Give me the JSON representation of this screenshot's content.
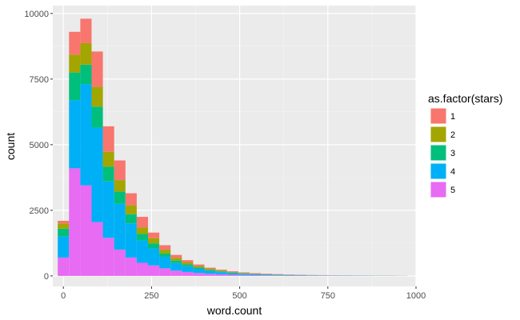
{
  "chart_data": {
    "type": "bar",
    "stacked": true,
    "xlabel": "word.count",
    "ylabel": "count",
    "xlim": [
      -30,
      1000
    ],
    "ylim": [
      -400,
      10300
    ],
    "bin_width": 32,
    "x": [
      0,
      32,
      64,
      96,
      128,
      160,
      192,
      224,
      256,
      288,
      320,
      352,
      384,
      416,
      448,
      480,
      512,
      544,
      576,
      608,
      640,
      672,
      704,
      736,
      768,
      800,
      832,
      864,
      896,
      928,
      960
    ],
    "x_ticks": [
      0,
      250,
      500,
      750,
      1000
    ],
    "y_ticks": [
      0,
      2500,
      5000,
      7500,
      10000
    ],
    "grid": true,
    "legend": {
      "title": "as.factor(stars)",
      "position": "right"
    },
    "series": [
      {
        "name": "5",
        "color": "#E76BF3",
        "values": [
          700,
          4100,
          3450,
          2050,
          1450,
          1000,
          700,
          500,
          400,
          290,
          200,
          150,
          110,
          80,
          60,
          45,
          35,
          28,
          22,
          18,
          14,
          11,
          9,
          8,
          7,
          6,
          5,
          5,
          4,
          4,
          3
        ]
      },
      {
        "name": "4",
        "color": "#00B0F6",
        "values": [
          800,
          2600,
          3850,
          3600,
          2150,
          1750,
          1300,
          850,
          650,
          440,
          290,
          220,
          160,
          110,
          85,
          60,
          45,
          35,
          28,
          22,
          18,
          14,
          11,
          9,
          8,
          7,
          6,
          5,
          4,
          4,
          3
        ]
      },
      {
        "name": "3",
        "color": "#00BF7D",
        "values": [
          300,
          1050,
          750,
          800,
          560,
          460,
          350,
          250,
          190,
          130,
          95,
          70,
          50,
          38,
          28,
          22,
          17,
          13,
          10,
          8,
          7,
          6,
          5,
          4,
          3,
          3,
          2,
          2,
          2,
          2,
          1
        ]
      },
      {
        "name": "2",
        "color": "#A3A500",
        "values": [
          200,
          680,
          820,
          760,
          570,
          440,
          340,
          250,
          200,
          140,
          105,
          75,
          55,
          40,
          30,
          23,
          18,
          14,
          11,
          9,
          7,
          6,
          5,
          4,
          3,
          3,
          2,
          2,
          2,
          2,
          1
        ]
      },
      {
        "name": "1",
        "color": "#F8766D",
        "values": [
          100,
          870,
          930,
          1340,
          970,
          750,
          460,
          400,
          210,
          170,
          110,
          85,
          60,
          45,
          35,
          27,
          20,
          16,
          13,
          10,
          8,
          7,
          6,
          5,
          4,
          3,
          3,
          2,
          2,
          2,
          1
        ]
      }
    ]
  }
}
